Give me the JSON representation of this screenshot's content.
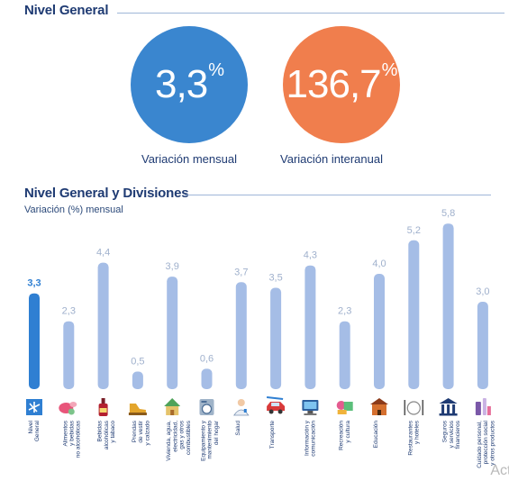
{
  "section1": {
    "title": "Nivel General"
  },
  "cards": [
    {
      "value": "3,3",
      "unit": "%",
      "caption": "Variación mensual",
      "color": "#3a86cf"
    },
    {
      "value": "136,7",
      "unit": "%",
      "caption": "Variación interanual",
      "color": "#f07e4d"
    }
  ],
  "section2": {
    "title": "Nivel General y Divisiones",
    "subtitle": "Variación (%) mensual"
  },
  "chart_data": {
    "type": "bar",
    "title": "Nivel General y Divisiones",
    "subtitle": "Variación (%) mensual",
    "ylim": [
      0,
      6
    ],
    "grid": false,
    "colors": {
      "highlight": "#2f7fd2",
      "default": "#a5bde6"
    },
    "categories": [
      [
        "Nivel",
        "General"
      ],
      [
        "Alimentos",
        "y bebidas",
        "no alcohólicas"
      ],
      [
        "Bebidas",
        "alcohólicas",
        "y tabaco"
      ],
      [
        "Prendas",
        "de vestir",
        "y calzado"
      ],
      [
        "Vivienda, agua,",
        "electricidad,",
        "gas y otros",
        "combustibles"
      ],
      [
        "Equipamiento y",
        "mantenimiento",
        "del hogar"
      ],
      [
        "Salud"
      ],
      [
        "Transporte"
      ],
      [
        "Información y",
        "comunicación"
      ],
      [
        "Recreación",
        "y cultura"
      ],
      [
        "Educación"
      ],
      [
        "Restaurantes",
        "y hoteles"
      ],
      [
        "Seguros",
        "y servicios",
        "financieros"
      ],
      [
        "Cuidado personal,",
        "protección social",
        "y otros productos"
      ]
    ],
    "values": [
      3.3,
      2.3,
      4.4,
      0.5,
      3.9,
      0.6,
      3.7,
      3.5,
      4.3,
      2.3,
      4.0,
      5.2,
      5.8,
      3.0
    ],
    "value_labels": [
      "3,3",
      "2,3",
      "4,4",
      "0,5",
      "3,9",
      "0,6",
      "3,7",
      "3,5",
      "4,3",
      "2,3",
      "4,0",
      "5,2",
      "5,8",
      "3,0"
    ],
    "highlight_index": 0,
    "icons": [
      "mosquito-icon",
      "food-icon",
      "bottle-icon",
      "shoe-icon",
      "house-icon",
      "washing-machine-icon",
      "doctor-icon",
      "car-icon",
      "computer-icon",
      "games-icon",
      "school-icon",
      "restaurant-icon",
      "bank-icon",
      "cosmetics-icon"
    ]
  },
  "watermark": "Acti"
}
